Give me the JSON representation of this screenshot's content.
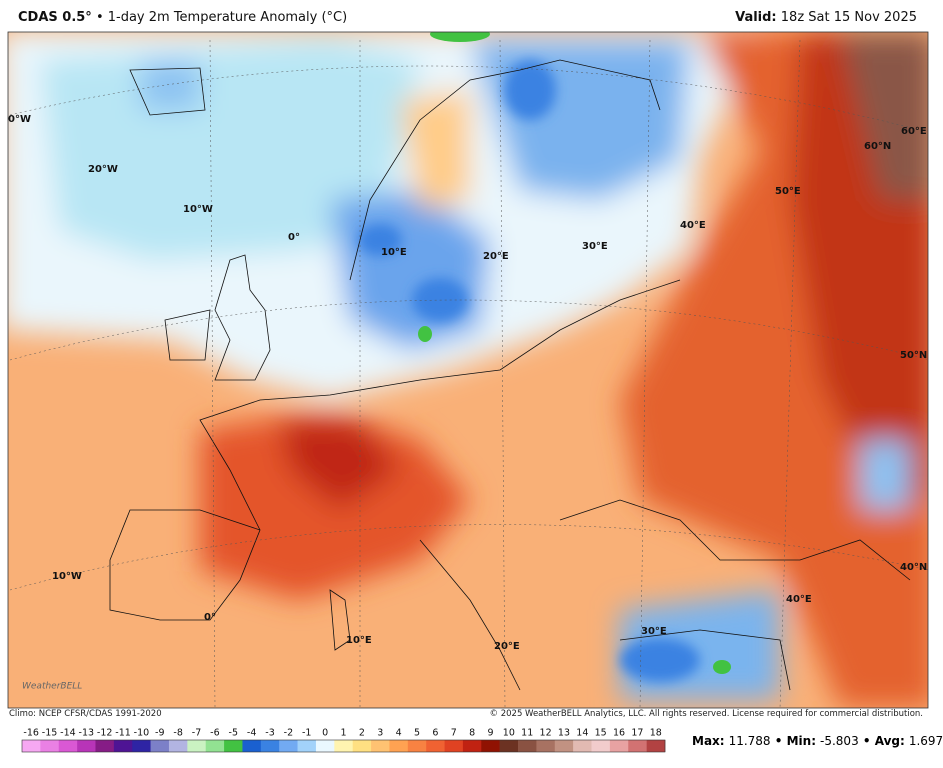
{
  "header": {
    "model": "CDAS 0.5°",
    "product": "• 1-day 2m Temperature Anomaly (°C)",
    "valid_label": "Valid:",
    "valid_time": "18z Sat 15 Nov 2025"
  },
  "map": {
    "grid_labels": [
      "0°W",
      "20°W",
      "10°W",
      "0°",
      "10°E",
      "20°E",
      "30°E",
      "40°E",
      "50°E",
      "60°E",
      "60°N",
      "50°N",
      "40°N",
      "10°W",
      "0°",
      "10°E",
      "20°E",
      "30°E",
      "40°E"
    ],
    "logo": "WeatherBELL"
  },
  "footer": {
    "climo": "Climo: NCEP CFSR/CDAS 1991-2020",
    "copyright": "© 2025 WeatherBELL Analytics, LLC. All rights reserved. License required for commercial distribution."
  },
  "colorbar": {
    "values": [
      -16,
      -15,
      -14,
      -13,
      -12,
      -11,
      -10,
      -9,
      -8,
      -7,
      -6,
      -5,
      -4,
      -3,
      -2,
      -1,
      0,
      1,
      2,
      3,
      4,
      5,
      6,
      7,
      8,
      9,
      10,
      11,
      12,
      13,
      14,
      15,
      16,
      17,
      18
    ],
    "colors": [
      "#f6a8f2",
      "#ea80e4",
      "#da58d4",
      "#b834b8",
      "#861c86",
      "#4e1494",
      "#2e24a4",
      "#7c80c8",
      "#b2b4e2",
      "#caf2c2",
      "#92e292",
      "#42c242",
      "#1a60d0",
      "#3a82e2",
      "#72aaf2",
      "#a2d2fa",
      "#eaf8ff",
      "#fff4b0",
      "#ffe082",
      "#ffc272",
      "#ffa252",
      "#f88242",
      "#f06232",
      "#e04222",
      "#c02212",
      "#901202",
      "#6c3222",
      "#8a5242",
      "#a87262",
      "#c29282",
      "#e2bab2",
      "#f2cccc",
      "#e8a2a2",
      "#d27272",
      "#b24242"
    ]
  },
  "stats": [
    {
      "label": "Max:",
      "value": 11.788
    },
    {
      "label": "Min:",
      "value": -5.803
    },
    {
      "label": "Avg:",
      "value": 1.697
    }
  ]
}
